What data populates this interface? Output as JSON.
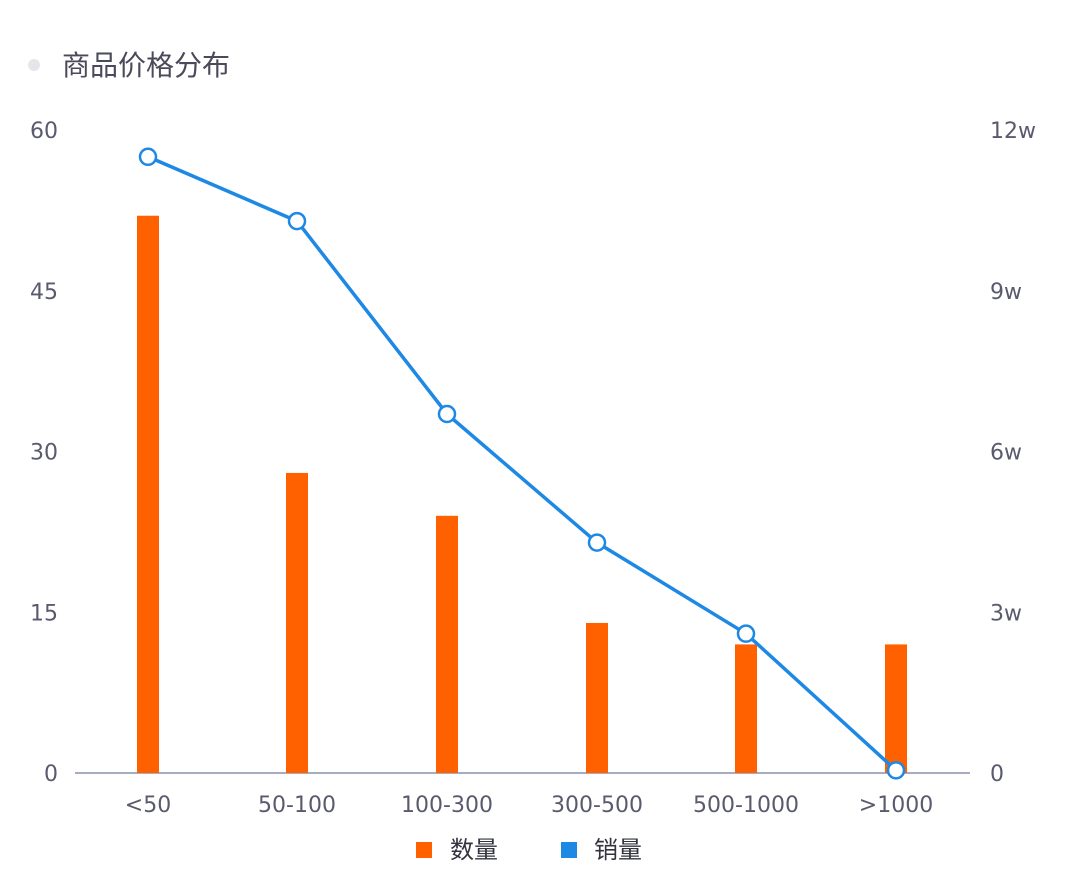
{
  "chart_data": {
    "type": "bar",
    "title": "商品价格分布",
    "categories": [
      "<50",
      "50-100",
      "100-300",
      "300-500",
      "500-1000",
      ">1000"
    ],
    "series": [
      {
        "name": "数量",
        "type": "bar",
        "axis": "left",
        "color": "#ff6100",
        "values": [
          52,
          28,
          24,
          14,
          12,
          12
        ]
      },
      {
        "name": "销量",
        "type": "line",
        "axis": "right",
        "color": "#1e88e5",
        "values": [
          115000,
          103000,
          67000,
          43000,
          26000,
          500
        ]
      }
    ],
    "y_left": {
      "range": [
        0,
        60
      ],
      "ticks": [
        0,
        15,
        30,
        45,
        60
      ],
      "tick_labels": [
        "0",
        "15",
        "30",
        "45",
        "60"
      ]
    },
    "y_right": {
      "range": [
        0,
        120000
      ],
      "ticks": [
        0,
        30000,
        60000,
        90000,
        120000
      ],
      "tick_labels": [
        "0",
        "3w",
        "6w",
        "9w",
        "12w"
      ]
    },
    "grid": false,
    "legend_position": "bottom-center",
    "title_marker_color": "#e6e6ea"
  }
}
